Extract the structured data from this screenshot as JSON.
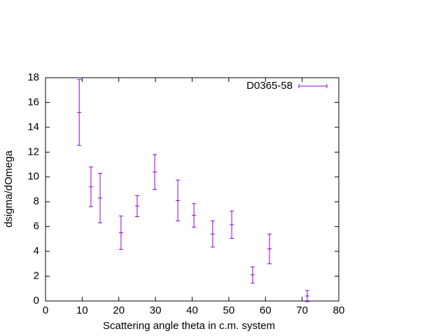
{
  "chart_data": {
    "type": "errorbar",
    "xlabel": "Scattering angle theta in c.m. system",
    "ylabel": "dsigma/dOmega",
    "xlim": [
      0,
      80
    ],
    "xticks": [
      0,
      10,
      20,
      30,
      40,
      50,
      60,
      70,
      80
    ],
    "ylim": [
      0,
      18
    ],
    "yticks": [
      0,
      2,
      4,
      6,
      8,
      10,
      12,
      14,
      16,
      18
    ],
    "legend": "top-right",
    "series": [
      {
        "name": "D0365-58",
        "color": "#9400d3",
        "x": [
          9.2,
          12.4,
          14.9,
          20.6,
          25.0,
          29.8,
          36.1,
          40.5,
          45.6,
          50.8,
          56.5,
          61.1,
          71.4
        ],
        "values": [
          15.2,
          9.2,
          8.3,
          5.5,
          7.65,
          10.4,
          8.1,
          6.9,
          5.4,
          6.15,
          2.1,
          4.2,
          0.4
        ],
        "errors": [
          2.65,
          1.6,
          2.0,
          1.35,
          0.85,
          1.4,
          1.65,
          0.95,
          1.05,
          1.1,
          0.65,
          1.2,
          0.45
        ]
      }
    ]
  }
}
